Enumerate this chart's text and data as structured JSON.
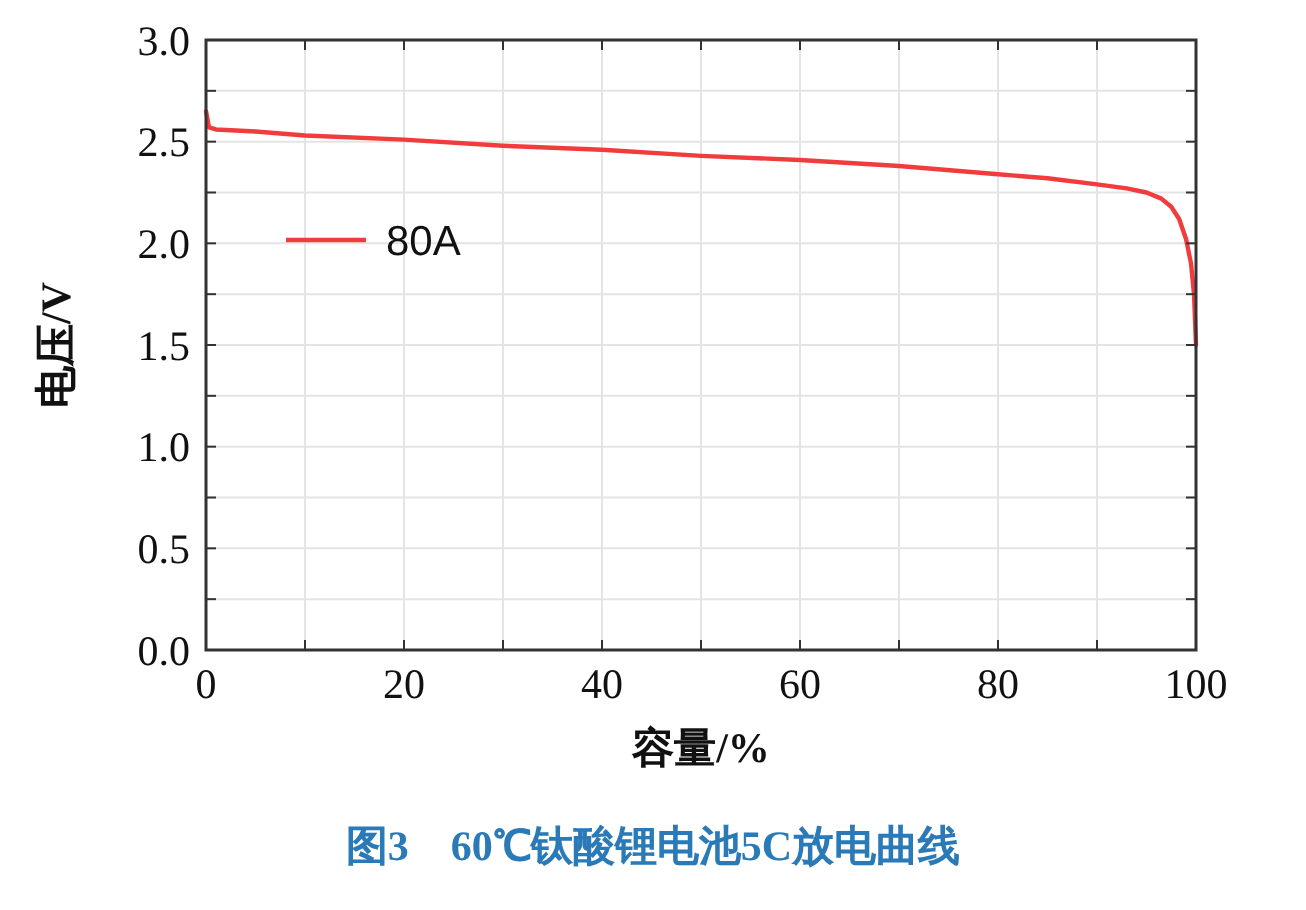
{
  "chart_data": {
    "type": "line",
    "xlabel": "容量/%",
    "ylabel": "电压/V",
    "annotations": [
      "图3　60℃钛酸锂电池5C放电曲线"
    ],
    "xlim": [
      0,
      100
    ],
    "xticks": [
      0,
      {
        "value": 10,
        "label": null
      },
      20,
      {
        "value": 30,
        "label": null
      },
      40,
      {
        "value": 50,
        "label": null
      },
      60,
      {
        "value": 70,
        "label": null
      },
      80,
      {
        "value": 90,
        "label": null
      },
      100
    ],
    "ylim": [
      0,
      3
    ],
    "yticks": [
      "0.0",
      {
        "value": 0.25,
        "label": null
      },
      {
        "value": 0.5,
        "label": "0.5"
      },
      {
        "value": 0.75,
        "label": null
      },
      {
        "value": 1,
        "label": "1.0"
      },
      {
        "value": 1.25,
        "label": null
      },
      {
        "value": 1.5,
        "label": "1.5"
      },
      {
        "value": 1.75,
        "label": null
      },
      {
        "value": 2,
        "label": "2.0"
      },
      {
        "value": 2.25,
        "label": null
      },
      {
        "value": 2.5,
        "label": "2.5"
      },
      {
        "value": 2.75,
        "label": null
      },
      {
        "value": 3,
        "label": "3.0"
      }
    ],
    "grid": true,
    "legend": "top left",
    "marker": "none",
    "line_style": "solid",
    "series": [
      {
        "name": "80A",
        "color": "#f03c3c",
        "x": [
          0,
          0.3,
          1,
          5,
          10,
          20,
          30,
          40,
          50,
          60,
          70,
          80,
          85,
          90,
          93,
          95,
          96.5,
          97.5,
          98.3,
          99,
          99.5,
          99.8,
          100
        ],
        "values": [
          2.65,
          2.57,
          2.56,
          2.55,
          2.53,
          2.51,
          2.48,
          2.46,
          2.43,
          2.41,
          2.38,
          2.34,
          2.32,
          2.29,
          2.27,
          2.25,
          2.22,
          2.18,
          2.12,
          2.02,
          1.9,
          1.75,
          1.5
        ]
      }
    ]
  }
}
